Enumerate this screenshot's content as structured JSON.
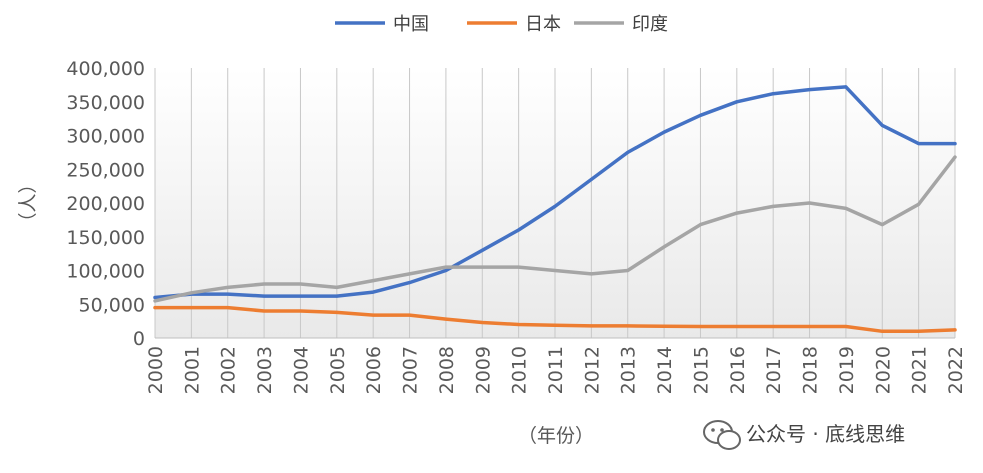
{
  "chart_data": {
    "type": "line",
    "title": "",
    "xlabel": "（年份）",
    "ylabel": "（人）",
    "ylim": [
      0,
      400000
    ],
    "yticks": [
      "0",
      "50,000",
      "100,000",
      "150,000",
      "200,000",
      "250,000",
      "300,000",
      "350,000",
      "400,000"
    ],
    "ytick_values": [
      0,
      50000,
      100000,
      150000,
      200000,
      250000,
      300000,
      350000,
      400000
    ],
    "categories": [
      "2000",
      "2001",
      "2002",
      "2003",
      "2004",
      "2005",
      "2006",
      "2007",
      "2008",
      "2009",
      "2010",
      "2011",
      "2012",
      "2013",
      "2014",
      "2015",
      "2016",
      "2017",
      "2018",
      "2019",
      "2020",
      "2021",
      "2022"
    ],
    "grid": "vertical lines at each year",
    "legend_position": "top-center",
    "series": [
      {
        "name": "中国",
        "color": "#4472c4",
        "values": [
          60000,
          65000,
          65000,
          62000,
          62000,
          62000,
          68000,
          82000,
          100000,
          130000,
          160000,
          195000,
          235000,
          275000,
          305000,
          330000,
          350000,
          362000,
          368000,
          372000,
          315000,
          288000,
          288000
        ]
      },
      {
        "name": "日本",
        "color": "#ed7d31",
        "values": [
          45000,
          45000,
          45000,
          40000,
          40000,
          38000,
          34000,
          34000,
          28000,
          23000,
          20000,
          19000,
          18000,
          18000,
          17500,
          17000,
          17000,
          17000,
          17000,
          17000,
          10000,
          10000,
          12000
        ]
      },
      {
        "name": "印度",
        "color": "#a5a5a5",
        "values": [
          55000,
          67000,
          75000,
          80000,
          80000,
          75000,
          85000,
          95000,
          105000,
          105000,
          105000,
          100000,
          95000,
          100000,
          135000,
          168000,
          185000,
          195000,
          200000,
          192000,
          168000,
          198000,
          268000
        ]
      }
    ]
  },
  "watermark": {
    "icon": "wechat-icon",
    "text": "公众号 · 底线思维"
  }
}
